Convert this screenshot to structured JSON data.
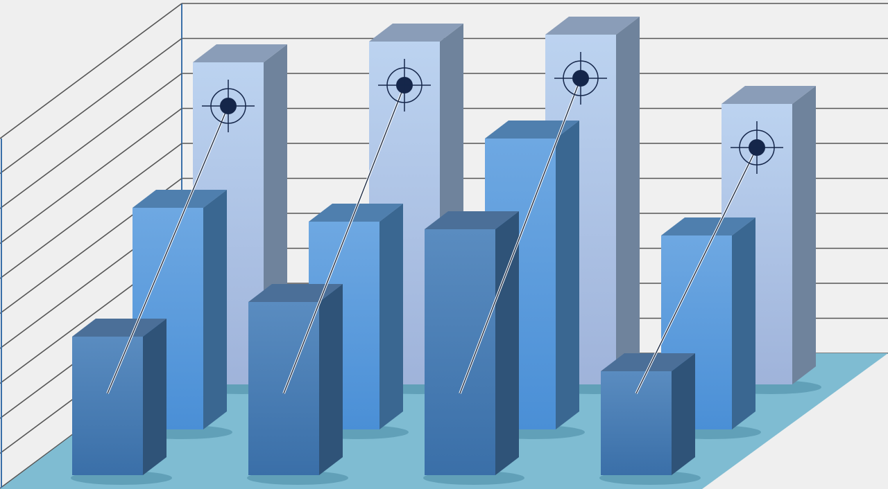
{
  "chart_data": {
    "type": "bar",
    "style": "3d-grouped-depth",
    "categories": [
      "",
      "",
      "",
      ""
    ],
    "series": [
      {
        "values": [
          9.3,
          9.9,
          10.1,
          8.1
        ],
        "row": "back",
        "color": "#b4cdee",
        "marker": "crosshair-target"
      },
      {
        "values": [
          6.4,
          6.0,
          8.4,
          5.6
        ],
        "row": "middle",
        "color": "#5b9ee0"
      },
      {
        "values": [
          4.0,
          5.0,
          7.1,
          3.0
        ],
        "row": "front",
        "color": "#4479b0"
      }
    ],
    "grid": true,
    "floor_color": "#7fbcd2",
    "wall_color": "#f0f0f0",
    "grid_color": "#555555"
  }
}
